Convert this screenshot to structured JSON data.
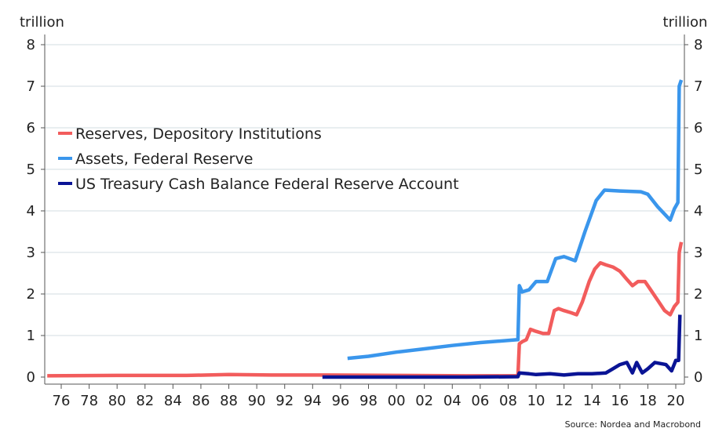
{
  "chart_data": {
    "type": "line",
    "title": "",
    "ylabel_left": "trillion",
    "ylabel_right": "trillion",
    "source": "Source: Nordea and Macrobond",
    "xlim": [
      1975,
      2020.7
    ],
    "ylim": [
      0,
      8
    ],
    "yticks": [
      0,
      1,
      2,
      3,
      4,
      5,
      6,
      7,
      8
    ],
    "xticks": [
      {
        "year": 1976,
        "label": "76"
      },
      {
        "year": 1978,
        "label": "78"
      },
      {
        "year": 1980,
        "label": "80"
      },
      {
        "year": 1982,
        "label": "82"
      },
      {
        "year": 1984,
        "label": "84"
      },
      {
        "year": 1986,
        "label": "86"
      },
      {
        "year": 1988,
        "label": "88"
      },
      {
        "year": 1990,
        "label": "90"
      },
      {
        "year": 1992,
        "label": "92"
      },
      {
        "year": 1994,
        "label": "94"
      },
      {
        "year": 1996,
        "label": "96"
      },
      {
        "year": 1998,
        "label": "98"
      },
      {
        "year": 2000,
        "label": "00"
      },
      {
        "year": 2002,
        "label": "02"
      },
      {
        "year": 2004,
        "label": "04"
      },
      {
        "year": 2006,
        "label": "06"
      },
      {
        "year": 2008,
        "label": "08"
      },
      {
        "year": 2010,
        "label": "10"
      },
      {
        "year": 2012,
        "label": "12"
      },
      {
        "year": 2014,
        "label": "14"
      },
      {
        "year": 2016,
        "label": "16"
      },
      {
        "year": 2018,
        "label": "18"
      },
      {
        "year": 2020,
        "label": "20"
      }
    ],
    "grid": true,
    "legend_placement": "upper-left",
    "series": [
      {
        "name": "Reserves, Depository Institutions",
        "color": "#f25c5c",
        "points": [
          [
            1975,
            0.03
          ],
          [
            1980,
            0.04
          ],
          [
            1985,
            0.04
          ],
          [
            1988,
            0.06
          ],
          [
            1991,
            0.05
          ],
          [
            1995,
            0.05
          ],
          [
            2000,
            0.04
          ],
          [
            2005,
            0.03
          ],
          [
            2008.7,
            0.03
          ],
          [
            2008.8,
            0.8
          ],
          [
            2009,
            0.85
          ],
          [
            2009.3,
            0.9
          ],
          [
            2009.6,
            1.15
          ],
          [
            2010,
            1.1
          ],
          [
            2010.5,
            1.05
          ],
          [
            2010.9,
            1.05
          ],
          [
            2011.3,
            1.6
          ],
          [
            2011.6,
            1.65
          ],
          [
            2012,
            1.6
          ],
          [
            2012.5,
            1.55
          ],
          [
            2012.9,
            1.5
          ],
          [
            2013.3,
            1.8
          ],
          [
            2013.8,
            2.3
          ],
          [
            2014.2,
            2.6
          ],
          [
            2014.6,
            2.75
          ],
          [
            2015,
            2.7
          ],
          [
            2015.5,
            2.65
          ],
          [
            2016,
            2.55
          ],
          [
            2016.5,
            2.35
          ],
          [
            2016.9,
            2.2
          ],
          [
            2017.3,
            2.3
          ],
          [
            2017.8,
            2.3
          ],
          [
            2018.2,
            2.1
          ],
          [
            2018.7,
            1.85
          ],
          [
            2019.2,
            1.6
          ],
          [
            2019.6,
            1.5
          ],
          [
            2019.9,
            1.7
          ],
          [
            2020.15,
            1.8
          ],
          [
            2020.25,
            3.0
          ],
          [
            2020.4,
            3.25
          ]
        ]
      },
      {
        "name": "Assets, Federal Reserve",
        "color": "#3a96ec",
        "points": [
          [
            1996.5,
            0.45
          ],
          [
            1998,
            0.5
          ],
          [
            2000,
            0.6
          ],
          [
            2002,
            0.68
          ],
          [
            2004,
            0.76
          ],
          [
            2006,
            0.83
          ],
          [
            2008.7,
            0.9
          ],
          [
            2008.8,
            2.2
          ],
          [
            2009,
            2.05
          ],
          [
            2009.5,
            2.1
          ],
          [
            2010,
            2.3
          ],
          [
            2010.8,
            2.3
          ],
          [
            2011.4,
            2.85
          ],
          [
            2012,
            2.9
          ],
          [
            2012.8,
            2.8
          ],
          [
            2013.5,
            3.5
          ],
          [
            2014.3,
            4.25
          ],
          [
            2014.9,
            4.5
          ],
          [
            2016,
            4.48
          ],
          [
            2017.5,
            4.46
          ],
          [
            2018,
            4.4
          ],
          [
            2018.7,
            4.1
          ],
          [
            2019.6,
            3.78
          ],
          [
            2019.9,
            4.05
          ],
          [
            2020.15,
            4.2
          ],
          [
            2020.25,
            7.0
          ],
          [
            2020.4,
            7.15
          ]
        ]
      },
      {
        "name": "US Treasury Cash Balance Federal Reserve Account",
        "color": "#0a1495",
        "points": [
          [
            1994.7,
            0.0
          ],
          [
            2000,
            0.0
          ],
          [
            2005,
            0.0
          ],
          [
            2008.7,
            0.01
          ],
          [
            2008.8,
            0.1
          ],
          [
            2009.5,
            0.08
          ],
          [
            2010,
            0.06
          ],
          [
            2011,
            0.08
          ],
          [
            2012,
            0.05
          ],
          [
            2013,
            0.08
          ],
          [
            2014,
            0.08
          ],
          [
            2015,
            0.1
          ],
          [
            2015.5,
            0.2
          ],
          [
            2016,
            0.3
          ],
          [
            2016.5,
            0.35
          ],
          [
            2016.9,
            0.1
          ],
          [
            2017.2,
            0.35
          ],
          [
            2017.6,
            0.1
          ],
          [
            2018,
            0.2
          ],
          [
            2018.5,
            0.35
          ],
          [
            2019.3,
            0.3
          ],
          [
            2019.7,
            0.15
          ],
          [
            2020,
            0.4
          ],
          [
            2020.2,
            0.4
          ],
          [
            2020.3,
            1.5
          ]
        ]
      }
    ]
  }
}
